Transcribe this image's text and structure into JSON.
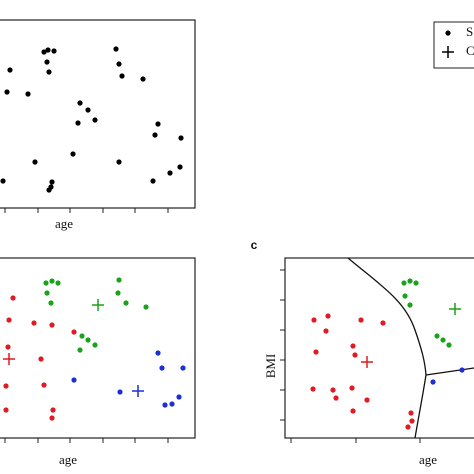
{
  "chart_data": [
    {
      "type": "scatter",
      "x_label": "age",
      "xlim": [
        0,
        195
      ],
      "ylim": [
        0,
        188
      ],
      "series": [
        {
          "name": "S",
          "marker": "dot",
          "color": "#000000",
          "x": [
            44,
            48,
            54,
            116,
            10,
            47,
            49,
            119,
            122,
            143,
            7,
            28,
            80,
            88,
            95,
            78,
            158,
            155,
            181,
            73,
            35,
            119,
            180,
            170,
            153,
            3,
            52,
            51,
            49
          ],
          "y": [
            156,
            158,
            157,
            159,
            138,
            146,
            136,
            144,
            132,
            129,
            116,
            114,
            105,
            98,
            88,
            85,
            84,
            73,
            70,
            54,
            46,
            46,
            41,
            35,
            27,
            27,
            26,
            21,
            18
          ]
        },
        {
          "name": "C",
          "marker": "plus",
          "color": "#000000",
          "x": [],
          "y": []
        }
      ]
    },
    {
      "type": "scatter",
      "x_label": "age",
      "xlim": [
        0,
        195
      ],
      "ylim": [
        0,
        180
      ],
      "series": [
        {
          "marker": "dot",
          "color": "#1aa31a",
          "centroid": [
            98,
            133
          ],
          "x": [
            46,
            52,
            58,
            119,
            47,
            51,
            118,
            126,
            146,
            82,
            88,
            95,
            80
          ],
          "y": [
            155,
            157,
            155,
            158,
            145,
            135,
            145,
            135,
            131,
            102,
            98,
            93,
            88
          ]
        },
        {
          "marker": "dot",
          "color": "#e01b24",
          "centroid": [
            9,
            79
          ],
          "x": [
            13,
            9,
            34,
            52,
            74,
            8,
            41,
            6,
            44,
            6,
            53,
            52
          ],
          "y": [
            140,
            118,
            115,
            113,
            106,
            91,
            79,
            52,
            53,
            28,
            28,
            20
          ]
        },
        {
          "marker": "dot",
          "color": "#1c2fd6",
          "centroid": [
            138,
            47
          ],
          "x": [
            158,
            162,
            183,
            74,
            120,
            179,
            172,
            165
          ],
          "y": [
            85,
            70,
            70,
            58,
            46,
            41,
            34,
            33
          ]
        }
      ]
    },
    {
      "type": "scatter",
      "panel_label": "c",
      "x_label": "age",
      "y_label": "BMI",
      "xlim": [
        0,
        195
      ],
      "ylim": [
        0,
        180
      ],
      "series": [
        {
          "marker": "dot",
          "color": "#e01b24",
          "centroid": [
            82,
            76
          ],
          "x": [
            43,
            29,
            76,
            98,
            41,
            68,
            70,
            31,
            28,
            48,
            67,
            51,
            68,
            82,
            126,
            127,
            123
          ],
          "y": [
            122,
            118,
            118,
            115,
            107,
            92,
            83,
            86,
            49,
            48,
            50,
            40,
            27,
            38,
            25,
            17,
            11
          ]
        },
        {
          "marker": "dot",
          "color": "#1aa31a",
          "centroid": [
            170,
            129
          ],
          "x": [
            119,
            125,
            131,
            120,
            125,
            152,
            158,
            164
          ],
          "y": [
            155,
            157,
            155,
            142,
            133,
            102,
            98,
            93
          ]
        },
        {
          "marker": "dot",
          "color": "#1c2fd6",
          "x": [
            148,
            177
          ],
          "y": [
            56,
            68
          ]
        }
      ]
    }
  ]
}
